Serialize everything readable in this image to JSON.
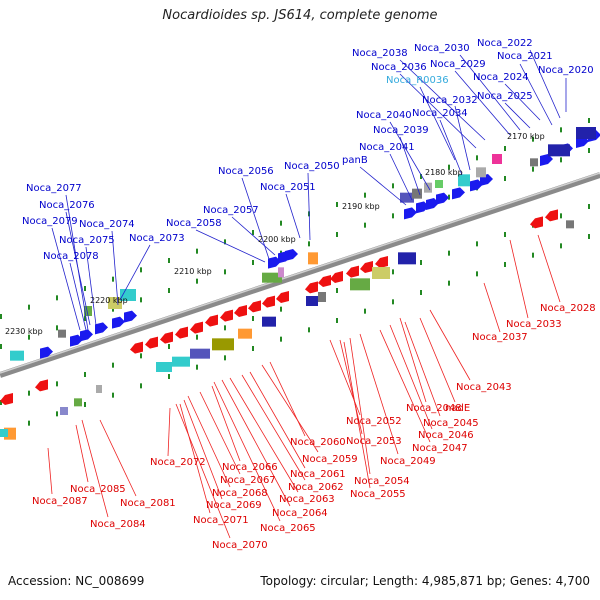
{
  "title": "Nocardioides sp. JS614, complete genome",
  "footer": {
    "accession": "Accession: NC_008699",
    "topology": "Topology: circular; Length: 4,985,871 bp; Genes: 4,700"
  },
  "colors": {
    "forward_label": "#0000cc",
    "reverse_label": "#dd0000",
    "rna_label": "#33aadd",
    "backbone": "#999999",
    "tick": "#228822"
  },
  "scale_labels": [
    "2170 kbp",
    "2180 kbp",
    "2190 kbp",
    "2200 kbp",
    "2210 kbp",
    "2220 kbp",
    "2230 kbp"
  ],
  "top_labels": [
    "Noca_2022",
    "Noca_2030",
    "Noca_2038",
    "Noca_2021",
    "Noca_2029",
    "Noca_2036",
    "Noca_2020",
    "Noca_R0036",
    "Noca_2024",
    "Noca_2032",
    "Noca_2025",
    "Noca_2040",
    "Noca_2034",
    "Noca_2039",
    "Noca_2041",
    "panB",
    "Noca_2056",
    "Noca_2050",
    "Noca_2051",
    "Noca_2077",
    "Noca_2076",
    "Noca_2057",
    "Noca_2079",
    "Noca_2074",
    "Noca_2058",
    "Noca_2075",
    "Noca_2073",
    "Noca_2078"
  ],
  "bottom_labels": [
    "Noca_2028",
    "Noca_2033",
    "Noca_2037",
    "Noca_2043",
    "Noca_2048",
    "nadE",
    "Noca_2052",
    "Noca_2045",
    "Noca_2046",
    "Noca_2053",
    "Noca_2060",
    "Noca_2047",
    "Noca_2059",
    "Noca_2049",
    "Noca_2072",
    "Noca_2066",
    "Noca_2061",
    "Noca_2054",
    "Noca_2067",
    "Noca_2062",
    "Noca_2055",
    "Noca_2068",
    "Noca_2063",
    "Noca_2085",
    "Noca_2069",
    "Noca_2064",
    "Noca_2087",
    "Noca_2081",
    "Noca_2071",
    "Noca_2065",
    "Noca_2084",
    "Noca_2070"
  ]
}
